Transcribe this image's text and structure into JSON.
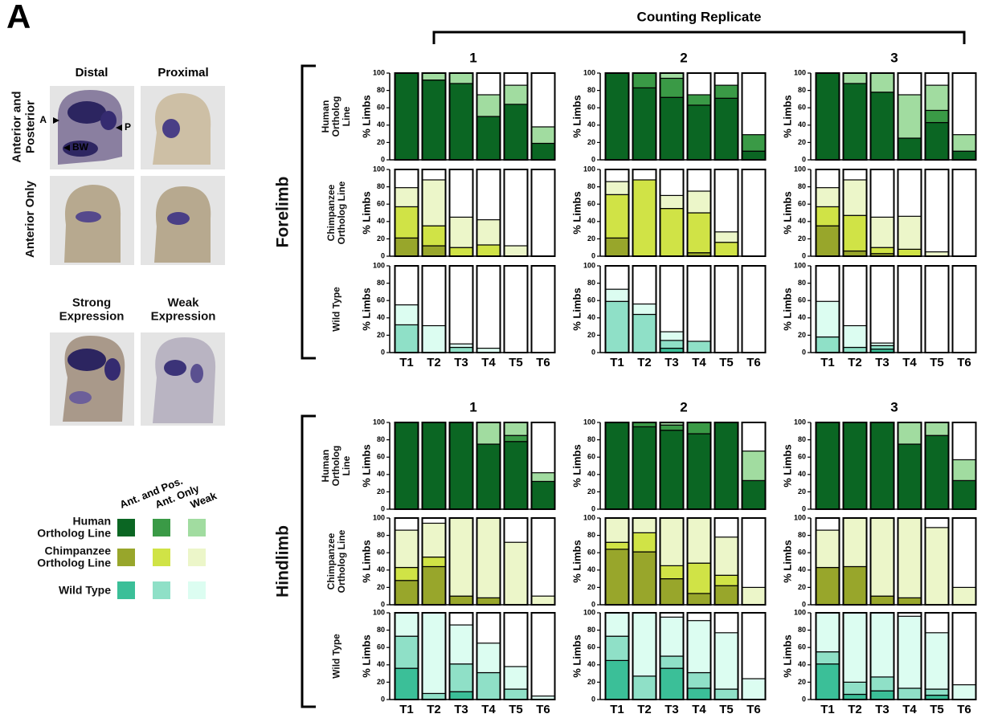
{
  "panel_label": "A",
  "images": {
    "columns": [
      "Distal",
      "Proximal"
    ],
    "rows": [
      "Anterior and Posterior",
      "Anterior Only"
    ],
    "arrows": [
      "A",
      "P",
      "BW"
    ],
    "expression": [
      "Strong Expression",
      "Weak Expression"
    ]
  },
  "legend": {
    "columns": [
      "Ant. and Pos.",
      "Ant. Only",
      "Weak"
    ],
    "rows": [
      {
        "label": "Human Ortholog Line",
        "colors": [
          "#0b6623",
          "#3a9a46",
          "#a1dca0"
        ]
      },
      {
        "label": "Chimpanzee Ortholog Line",
        "colors": [
          "#98a62b",
          "#d0e346",
          "#ecf6c9"
        ]
      },
      {
        "label": "Wild Type",
        "colors": [
          "#3bbf98",
          "#8fe0c7",
          "#dcfdf1"
        ]
      }
    ]
  },
  "replicate_title": "Counting Replicate",
  "limbs": [
    "Forelimb",
    "Hindlimb"
  ],
  "chart_data": [
    {
      "type": "bar",
      "stacked": true,
      "title": "1",
      "row_label": "Human Ortholog Line",
      "ylabel": "% Limbs",
      "ylim": [
        0,
        100
      ],
      "yticks": [
        0,
        20,
        40,
        60,
        80,
        100
      ],
      "series": [
        {
          "color": "#0b6623",
          "values": [
            100,
            92,
            88,
            50,
            64,
            19
          ]
        },
        {
          "color": "#3a9a46",
          "values": [
            0,
            0,
            0,
            0,
            0,
            0
          ]
        },
        {
          "color": "#a1dca0",
          "values": [
            0,
            8,
            12,
            25,
            22,
            19
          ]
        }
      ]
    },
    {
      "type": "bar",
      "stacked": true,
      "title": "2",
      "ylabel": "% Limbs",
      "ylim": [
        0,
        100
      ],
      "yticks": [
        0,
        20,
        40,
        60,
        80,
        100
      ],
      "series": [
        {
          "color": "#0b6623",
          "values": [
            100,
            83,
            72,
            63,
            71,
            10
          ]
        },
        {
          "color": "#3a9a46",
          "values": [
            0,
            17,
            22,
            12,
            15,
            19
          ]
        },
        {
          "color": "#a1dca0",
          "values": [
            0,
            0,
            6,
            0,
            0,
            0
          ]
        }
      ]
    },
    {
      "type": "bar",
      "stacked": true,
      "title": "3",
      "ylabel": "% Limbs",
      "ylim": [
        0,
        100
      ],
      "yticks": [
        0,
        20,
        40,
        60,
        80,
        100
      ],
      "series": [
        {
          "color": "#0b6623",
          "values": [
            100,
            88,
            78,
            25,
            43,
            10
          ]
        },
        {
          "color": "#3a9a46",
          "values": [
            0,
            0,
            0,
            0,
            14,
            0
          ]
        },
        {
          "color": "#a1dca0",
          "values": [
            0,
            12,
            22,
            50,
            29,
            19
          ]
        }
      ]
    },
    {
      "type": "bar",
      "stacked": true,
      "row_label": "Chimpanzee Ortholog Line",
      "ylabel": "% Limbs",
      "ylim": [
        0,
        100
      ],
      "yticks": [
        0,
        20,
        40,
        60,
        80,
        100
      ],
      "series": [
        {
          "color": "#98a62b",
          "values": [
            21,
            12,
            0,
            0,
            0,
            0
          ]
        },
        {
          "color": "#d0e346",
          "values": [
            36,
            23,
            10,
            13,
            0,
            0
          ]
        },
        {
          "color": "#ecf6c9",
          "values": [
            22,
            53,
            35,
            29,
            12,
            0
          ]
        }
      ]
    },
    {
      "type": "bar",
      "stacked": true,
      "ylabel": "% Limbs",
      "ylim": [
        0,
        100
      ],
      "yticks": [
        0,
        20,
        40,
        60,
        80,
        100
      ],
      "series": [
        {
          "color": "#98a62b",
          "values": [
            21,
            0,
            0,
            4,
            0,
            0
          ]
        },
        {
          "color": "#d0e346",
          "values": [
            50,
            88,
            55,
            46,
            16,
            0
          ]
        },
        {
          "color": "#ecf6c9",
          "values": [
            15,
            0,
            15,
            25,
            12,
            0
          ]
        }
      ]
    },
    {
      "type": "bar",
      "stacked": true,
      "ylabel": "% Limbs",
      "ylim": [
        0,
        100
      ],
      "yticks": [
        0,
        20,
        40,
        60,
        80,
        100
      ],
      "series": [
        {
          "color": "#98a62b",
          "values": [
            35,
            6,
            3,
            0,
            0,
            0
          ]
        },
        {
          "color": "#d0e346",
          "values": [
            22,
            41,
            7,
            8,
            0,
            0
          ]
        },
        {
          "color": "#ecf6c9",
          "values": [
            22,
            41,
            35,
            38,
            5,
            0
          ]
        }
      ]
    },
    {
      "type": "bar",
      "stacked": true,
      "row_label": "Wild Type",
      "ylabel": "% Limbs",
      "ylim": [
        0,
        100
      ],
      "yticks": [
        0,
        20,
        40,
        60,
        80,
        100
      ],
      "categories": [
        "T1",
        "T2",
        "T3",
        "T4",
        "T5",
        "T6"
      ],
      "series": [
        {
          "color": "#3bbf98",
          "values": [
            0,
            0,
            0,
            0,
            0,
            0
          ]
        },
        {
          "color": "#8fe0c7",
          "values": [
            32,
            0,
            6,
            0,
            0,
            0
          ]
        },
        {
          "color": "#dcfdf1",
          "values": [
            23,
            31,
            4,
            5,
            0,
            0
          ]
        }
      ]
    },
    {
      "type": "bar",
      "stacked": true,
      "ylabel": "% Limbs",
      "ylim": [
        0,
        100
      ],
      "yticks": [
        0,
        20,
        40,
        60,
        80,
        100
      ],
      "categories": [
        "T1",
        "T2",
        "T3",
        "T4",
        "T5",
        "T6"
      ],
      "series": [
        {
          "color": "#3bbf98",
          "values": [
            0,
            0,
            5,
            0,
            0,
            0
          ]
        },
        {
          "color": "#8fe0c7",
          "values": [
            59,
            44,
            9,
            13,
            0,
            0
          ]
        },
        {
          "color": "#dcfdf1",
          "values": [
            14,
            12,
            10,
            0,
            0,
            0
          ]
        }
      ]
    },
    {
      "type": "bar",
      "stacked": true,
      "ylabel": "% Limbs",
      "ylim": [
        0,
        100
      ],
      "yticks": [
        0,
        20,
        40,
        60,
        80,
        100
      ],
      "categories": [
        "T1",
        "T2",
        "T3",
        "T4",
        "T5",
        "T6"
      ],
      "series": [
        {
          "color": "#3bbf98",
          "values": [
            0,
            0,
            4,
            0,
            0,
            0
          ]
        },
        {
          "color": "#8fe0c7",
          "values": [
            18,
            6,
            4,
            0,
            0,
            0
          ]
        },
        {
          "color": "#dcfdf1",
          "values": [
            41,
            25,
            3,
            0,
            0,
            0
          ]
        }
      ]
    },
    {
      "type": "bar",
      "stacked": true,
      "title": "1",
      "row_label": "Human Ortholog Line",
      "ylabel": "% Limbs",
      "ylim": [
        0,
        100
      ],
      "yticks": [
        0,
        20,
        40,
        60,
        80,
        100
      ],
      "series": [
        {
          "color": "#0b6623",
          "values": [
            100,
            100,
            100,
            75,
            78,
            32
          ]
        },
        {
          "color": "#3a9a46",
          "values": [
            0,
            0,
            0,
            0,
            7,
            0
          ]
        },
        {
          "color": "#a1dca0",
          "values": [
            0,
            0,
            0,
            25,
            15,
            10
          ]
        }
      ]
    },
    {
      "type": "bar",
      "stacked": true,
      "title": "2",
      "ylabel": "% Limbs",
      "ylim": [
        0,
        100
      ],
      "yticks": [
        0,
        20,
        40,
        60,
        80,
        100
      ],
      "series": [
        {
          "color": "#0b6623",
          "values": [
            100,
            95,
            91,
            87,
            100,
            33
          ]
        },
        {
          "color": "#3a9a46",
          "values": [
            0,
            5,
            6,
            13,
            0,
            0
          ]
        },
        {
          "color": "#a1dca0",
          "values": [
            0,
            0,
            3,
            0,
            0,
            34
          ]
        }
      ]
    },
    {
      "type": "bar",
      "stacked": true,
      "title": "3",
      "ylabel": "% Limbs",
      "ylim": [
        0,
        100
      ],
      "yticks": [
        0,
        20,
        40,
        60,
        80,
        100
      ],
      "series": [
        {
          "color": "#0b6623",
          "values": [
            100,
            100,
            100,
            75,
            85,
            33
          ]
        },
        {
          "color": "#3a9a46",
          "values": [
            0,
            0,
            0,
            0,
            0,
            0
          ]
        },
        {
          "color": "#a1dca0",
          "values": [
            0,
            0,
            0,
            25,
            15,
            24
          ]
        }
      ]
    },
    {
      "type": "bar",
      "stacked": true,
      "row_label": "Chimpanzee Ortholog Line",
      "ylabel": "% Limbs",
      "ylim": [
        0,
        100
      ],
      "yticks": [
        0,
        20,
        40,
        60,
        80,
        100
      ],
      "series": [
        {
          "color": "#98a62b",
          "values": [
            28,
            44,
            10,
            8,
            0,
            0
          ]
        },
        {
          "color": "#d0e346",
          "values": [
            15,
            11,
            0,
            0,
            0,
            0
          ]
        },
        {
          "color": "#ecf6c9",
          "values": [
            43,
            39,
            90,
            92,
            72,
            10
          ]
        }
      ]
    },
    {
      "type": "bar",
      "stacked": true,
      "ylabel": "% Limbs",
      "ylim": [
        0,
        100
      ],
      "yticks": [
        0,
        20,
        40,
        60,
        80,
        100
      ],
      "series": [
        {
          "color": "#98a62b",
          "values": [
            64,
            61,
            30,
            13,
            22,
            0
          ]
        },
        {
          "color": "#d0e346",
          "values": [
            8,
            22,
            15,
            35,
            12,
            0
          ]
        },
        {
          "color": "#ecf6c9",
          "values": [
            28,
            17,
            55,
            52,
            44,
            20
          ]
        }
      ]
    },
    {
      "type": "bar",
      "stacked": true,
      "ylabel": "% Limbs",
      "ylim": [
        0,
        100
      ],
      "yticks": [
        0,
        20,
        40,
        60,
        80,
        100
      ],
      "series": [
        {
          "color": "#98a62b",
          "values": [
            43,
            44,
            10,
            8,
            0,
            0
          ]
        },
        {
          "color": "#d0e346",
          "values": [
            0,
            0,
            0,
            0,
            0,
            0
          ]
        },
        {
          "color": "#ecf6c9",
          "values": [
            43,
            56,
            90,
            92,
            89,
            20
          ]
        }
      ]
    },
    {
      "type": "bar",
      "stacked": true,
      "row_label": "Wild Type",
      "ylabel": "% Limbs",
      "ylim": [
        0,
        100
      ],
      "yticks": [
        0,
        20,
        40,
        60,
        80,
        100
      ],
      "categories": [
        "T1",
        "T2",
        "T3",
        "T4",
        "T5",
        "T6"
      ],
      "series": [
        {
          "color": "#3bbf98",
          "values": [
            36,
            0,
            9,
            0,
            0,
            0
          ]
        },
        {
          "color": "#8fe0c7",
          "values": [
            37,
            7,
            32,
            31,
            12,
            0
          ]
        },
        {
          "color": "#dcfdf1",
          "values": [
            27,
            93,
            45,
            34,
            26,
            4
          ]
        }
      ]
    },
    {
      "type": "bar",
      "stacked": true,
      "ylabel": "% Limbs",
      "ylim": [
        0,
        100
      ],
      "yticks": [
        0,
        20,
        40,
        60,
        80,
        100
      ],
      "categories": [
        "T1",
        "T2",
        "T3",
        "T4",
        "T5",
        "T6"
      ],
      "series": [
        {
          "color": "#3bbf98",
          "values": [
            45,
            0,
            36,
            13,
            0,
            0
          ]
        },
        {
          "color": "#8fe0c7",
          "values": [
            28,
            27,
            14,
            18,
            12,
            0
          ]
        },
        {
          "color": "#dcfdf1",
          "values": [
            27,
            73,
            45,
            60,
            65,
            24
          ]
        }
      ]
    },
    {
      "type": "bar",
      "stacked": true,
      "ylabel": "% Limbs",
      "ylim": [
        0,
        100
      ],
      "yticks": [
        0,
        20,
        40,
        60,
        80,
        100
      ],
      "categories": [
        "T1",
        "T2",
        "T3",
        "T4",
        "T5",
        "T6"
      ],
      "series": [
        {
          "color": "#3bbf98",
          "values": [
            41,
            6,
            10,
            0,
            5,
            0
          ]
        },
        {
          "color": "#8fe0c7",
          "values": [
            14,
            14,
            16,
            13,
            7,
            0
          ]
        },
        {
          "color": "#dcfdf1",
          "values": [
            45,
            80,
            74,
            83,
            65,
            17
          ]
        }
      ]
    }
  ]
}
